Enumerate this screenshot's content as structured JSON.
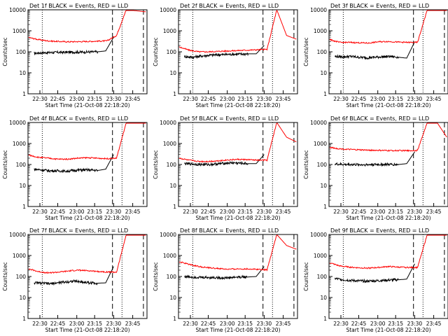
{
  "figure": {
    "start_time_label": "Start Time (21-Oct-08 22:18:20)",
    "ylabel": "Counts/sec",
    "y_ticks": [
      "1",
      "10",
      "100",
      "1000",
      "10000"
    ],
    "x_ticks": [
      "22:30",
      "22:45",
      "23:00",
      "23:15",
      "23:30",
      "23:45"
    ],
    "colors": {
      "events": "#000000",
      "lld": "#ff0000"
    }
  },
  "chart_data": [
    {
      "type": "line",
      "title": "Det 1f BLACK = Events, RED = LLD",
      "ylim": [
        1,
        10000
      ],
      "yscale": "log",
      "series": [
        {
          "name": "Events",
          "values": [
            85,
            90,
            92,
            94,
            95,
            96,
            97,
            98,
            100,
            110,
            500
          ]
        },
        {
          "name": "LLD",
          "values": [
            480,
            380,
            330,
            310,
            300,
            305,
            310,
            320,
            330,
            600,
            10000,
            9000,
            8000
          ]
        }
      ]
    },
    {
      "type": "line",
      "title": "Det 2f BLACK = Events, RED = LLD",
      "ylim": [
        1,
        10000
      ],
      "yscale": "log",
      "series": [
        {
          "name": "Events",
          "values": [
            60,
            55,
            62,
            68,
            72,
            74,
            76,
            78,
            80,
            80,
            200
          ]
        },
        {
          "name": "LLD",
          "values": [
            170,
            120,
            100,
            100,
            105,
            110,
            115,
            120,
            125,
            130,
            10000,
            600,
            400
          ]
        }
      ]
    },
    {
      "type": "line",
      "title": "Det 3f BLACK = Events, RED = LLD",
      "ylim": [
        1,
        10000
      ],
      "yscale": "log",
      "series": [
        {
          "name": "Events",
          "values": [
            60,
            58,
            60,
            55,
            52,
            55,
            58,
            60,
            55,
            50,
            300
          ]
        },
        {
          "name": "LLD",
          "values": [
            380,
            280,
            280,
            270,
            260,
            300,
            310,
            290,
            280,
            280,
            10000,
            10000,
            10000
          ]
        }
      ]
    },
    {
      "type": "line",
      "title": "Det 4f BLACK = Events, RED = LLD",
      "ylim": [
        1,
        10000
      ],
      "yscale": "log",
      "series": [
        {
          "name": "Events",
          "values": [
            60,
            55,
            50,
            50,
            48,
            52,
            55,
            55,
            52,
            60,
            300
          ]
        },
        {
          "name": "LLD",
          "values": [
            280,
            220,
            200,
            180,
            180,
            200,
            210,
            200,
            190,
            200,
            10000,
            10000,
            10000
          ]
        }
      ]
    },
    {
      "type": "line",
      "title": "Det 5f BLACK = Events, RED = LLD",
      "ylim": [
        1,
        10000
      ],
      "yscale": "log",
      "series": [
        {
          "name": "Events",
          "values": [
            110,
            105,
            100,
            100,
            105,
            115,
            120,
            115,
            110,
            110,
            300
          ]
        },
        {
          "name": "LLD",
          "values": [
            200,
            160,
            140,
            140,
            150,
            165,
            175,
            170,
            160,
            160,
            10000,
            2000,
            1200
          ]
        }
      ]
    },
    {
      "type": "line",
      "title": "Det 6f BLACK = Events, RED = LLD",
      "ylim": [
        1,
        10000
      ],
      "yscale": "log",
      "series": [
        {
          "name": "Events",
          "values": [
            105,
            100,
            100,
            98,
            98,
            100,
            100,
            100,
            100,
            110,
            400
          ]
        },
        {
          "name": "LLD",
          "values": [
            650,
            560,
            520,
            500,
            480,
            470,
            460,
            460,
            455,
            470,
            10000,
            10000,
            2000
          ]
        }
      ]
    },
    {
      "type": "line",
      "title": "Det 7f BLACK = Events, RED = LLD",
      "ylim": [
        1,
        10000
      ],
      "yscale": "log",
      "series": [
        {
          "name": "Events",
          "values": [
            50,
            48,
            45,
            50,
            55,
            60,
            55,
            50,
            48,
            50,
            300
          ]
        },
        {
          "name": "LLD",
          "values": [
            230,
            170,
            150,
            160,
            180,
            200,
            190,
            175,
            165,
            160,
            10000,
            10000,
            10000
          ]
        }
      ]
    },
    {
      "type": "line",
      "title": "Det 8f BLACK = Events, RED = LLD",
      "ylim": [
        1,
        10000
      ],
      "yscale": "log",
      "series": [
        {
          "name": "Events",
          "values": [
            100,
            95,
            90,
            90,
            88,
            85,
            90,
            95,
            95,
            100,
            300
          ]
        },
        {
          "name": "LLD",
          "values": [
            500,
            380,
            300,
            260,
            240,
            220,
            230,
            230,
            220,
            210,
            10000,
            3000,
            2000
          ]
        }
      ]
    },
    {
      "type": "line",
      "title": "Det 9f BLACK = Events, RED = LLD",
      "ylim": [
        1,
        10000
      ],
      "yscale": "log",
      "series": [
        {
          "name": "Events",
          "values": [
            80,
            70,
            65,
            62,
            60,
            62,
            65,
            68,
            70,
            75,
            400
          ]
        },
        {
          "name": "LLD",
          "values": [
            450,
            320,
            280,
            260,
            250,
            270,
            300,
            280,
            270,
            270,
            10000,
            10000,
            10000
          ]
        }
      ]
    }
  ]
}
